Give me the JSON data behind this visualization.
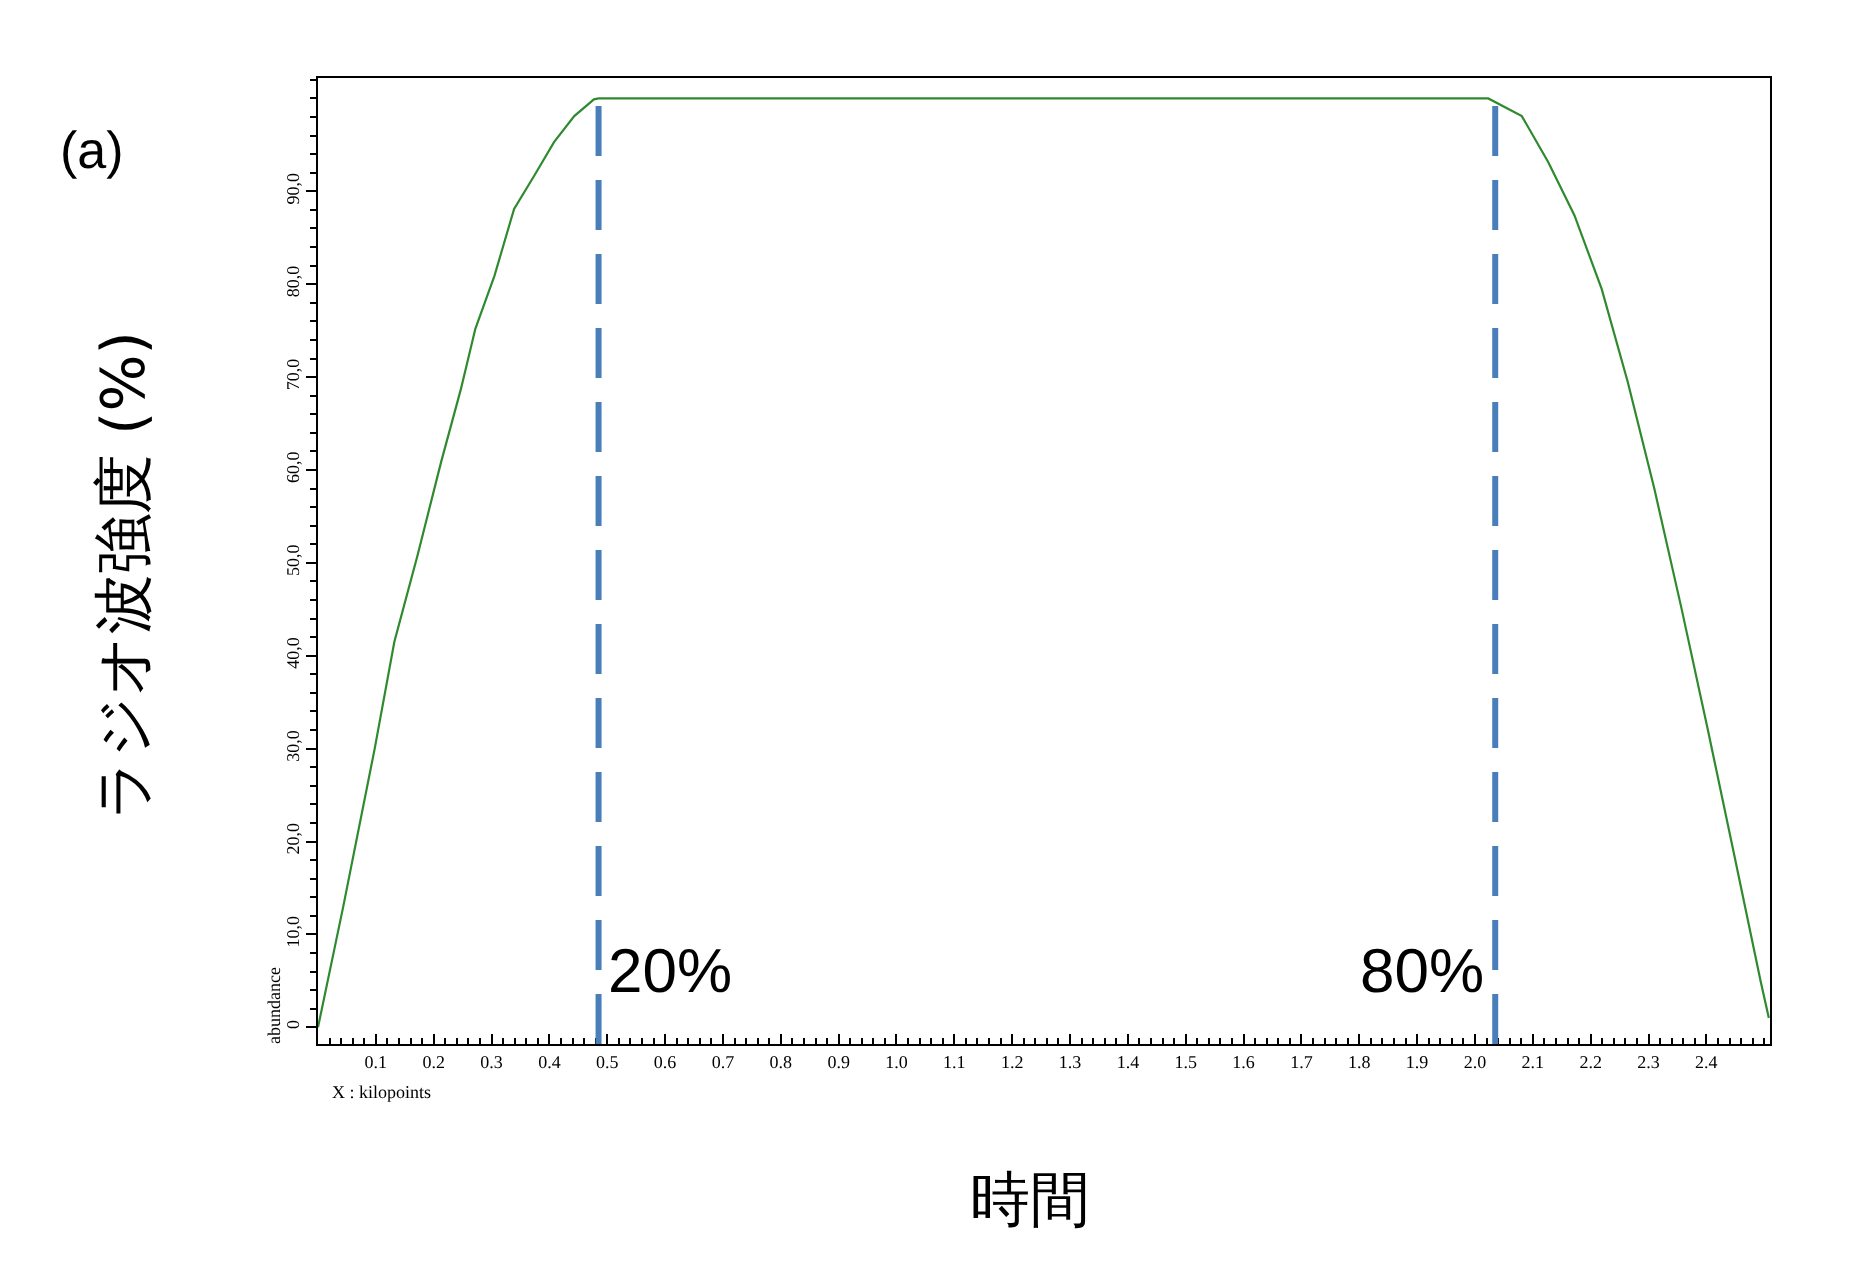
{
  "chart_data": {
    "type": "line",
    "title": "(a)",
    "xlabel": "時間",
    "ylabel": "ラジオ波強度 (%)",
    "annotations": [
      "abundance",
      "X : kilopoints",
      {
        "text": "20%",
        "x": 0.485,
        "y": 6
      },
      {
        "text": "80%",
        "x": 2.035,
        "y": 6
      }
    ],
    "x": [
      0,
      0.043,
      0.098,
      0.132,
      0.172,
      0.213,
      0.247,
      0.272,
      0.305,
      0.339,
      0.374,
      0.408,
      0.443,
      0.477,
      0.485,
      2.023,
      2.081,
      2.127,
      2.172,
      2.219,
      2.264,
      2.31,
      2.357,
      2.402,
      2.448,
      2.494,
      2.508
    ],
    "series": [
      {
        "color": "#2f8a2f",
        "values": [
          0,
          12.8,
          30,
          41.5,
          50.8,
          60.9,
          68.7,
          75.2,
          80.9,
          88.1,
          91.7,
          95.3,
          98.1,
          99.9,
          100,
          100,
          98.1,
          93.1,
          87.4,
          79.5,
          69.5,
          58,
          45.1,
          32.2,
          18.6,
          4.9,
          1
        ]
      }
    ],
    "xlim": [
      0,
      2.51
    ],
    "ylim": [
      -1.8,
      102.2
    ],
    "xticks": [
      0.1,
      0.2,
      0.3,
      0.4,
      0.5,
      0.6,
      0.7,
      0.8,
      0.9,
      {
        "value": 1,
        "label": "1.0"
      },
      1.1,
      1.2,
      1.3,
      1.4,
      1.5,
      1.6,
      1.7,
      1.8,
      1.9,
      {
        "value": 2,
        "label": "2.0"
      },
      2.1,
      2.2,
      2.3,
      2.4
    ],
    "yticks": [
      0,
      {
        "value": 10,
        "label": "10,0"
      },
      {
        "value": 20,
        "label": "20,0"
      },
      {
        "value": 30,
        "label": "30,0"
      },
      {
        "value": 40,
        "label": "40,0"
      },
      {
        "value": 50,
        "label": "50,0"
      },
      {
        "value": 60,
        "label": "60,0"
      },
      {
        "value": 70,
        "label": "70,0"
      },
      {
        "value": 80,
        "label": "80,0"
      },
      {
        "value": 90,
        "label": "90,0"
      }
    ],
    "ref_lines": [
      {
        "axis": "x",
        "value": 0.485,
        "color": "#4a7ebb",
        "line_style": "dashed"
      },
      {
        "axis": "x",
        "value": 2.035,
        "color": "#4a7ebb",
        "line_style": "dashed"
      }
    ]
  }
}
